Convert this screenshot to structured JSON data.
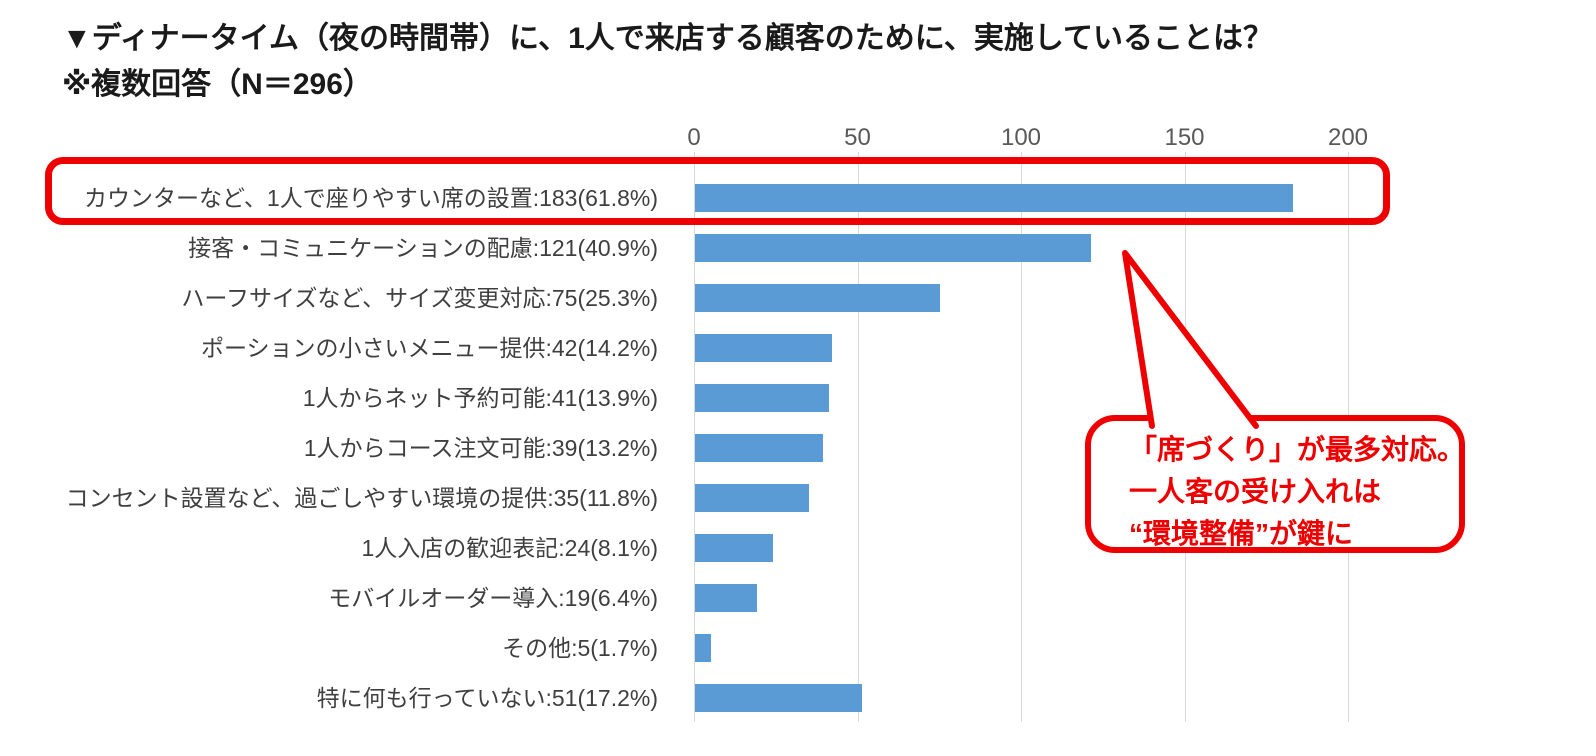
{
  "header": {
    "title_line1": "▼ディナータイム（夜の時間帯）に、1人で来店する顧客のために、実施していることは？",
    "title_line2": "※複数回答（N＝296）"
  },
  "chart_data": {
    "type": "bar",
    "orientation": "horizontal",
    "title": "ディナータイムに1人で来店する顧客のために実施していること",
    "n_total": 296,
    "categories": [
      "カウンターなど、1人で座りやすい席の設置",
      "接客・コミュニケーションの配慮",
      "ハーフサイズなど、サイズ変更対応",
      "ポーションの小さいメニュー提供",
      "1人からネット予約可能",
      "1人からコース注文可能",
      "コンセント設置など、過ごしやすい環境の提供",
      "1人入店の歓迎表記",
      "モバイルオーダー導入",
      "その他",
      "特に何も行っていない"
    ],
    "values": [
      183,
      121,
      75,
      42,
      41,
      39,
      35,
      24,
      19,
      5,
      51
    ],
    "percentages": [
      "61.8",
      "40.9",
      "25.3",
      "14.2",
      "13.9",
      "13.2",
      "11.8",
      "8.1",
      "6.4",
      "1.7",
      "17.2"
    ],
    "label_format": "{category}:{value}({percent}%)",
    "xlim": [
      0,
      200
    ],
    "xticks": [
      0,
      50,
      100,
      150,
      200
    ],
    "grid": true,
    "legend": "none",
    "bar_color": "#5b9bd5",
    "grid_color": "#d9d9d9",
    "tick_color": "#595959",
    "label_color": "#3f3f3f"
  },
  "annotations": {
    "highlight_color": "#ee0000",
    "callout": {
      "lines": [
        "「席づくり」が最多対応。",
        "一人客の受け入れは",
        "“環境整備”が鍵に"
      ],
      "color": "#ee0000"
    }
  }
}
